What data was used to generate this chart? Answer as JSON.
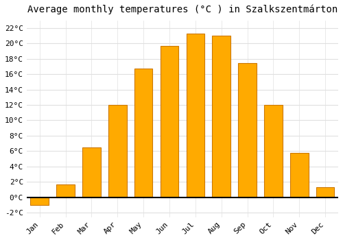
{
  "title": "Average monthly temperatures (°C ) in Szalkszentmárton",
  "months": [
    "Jan",
    "Feb",
    "Mar",
    "Apr",
    "May",
    "Jun",
    "Jul",
    "Aug",
    "Sep",
    "Oct",
    "Nov",
    "Dec"
  ],
  "temperatures": [
    -1.0,
    1.7,
    6.5,
    12.0,
    16.7,
    19.7,
    21.3,
    21.0,
    17.4,
    12.0,
    5.8,
    1.3
  ],
  "bar_color": "#FFAA00",
  "bar_edge_color": "#CC7700",
  "ylim": [
    -2.6,
    23.0
  ],
  "yticks": [
    -2,
    0,
    2,
    4,
    6,
    8,
    10,
    12,
    14,
    16,
    18,
    20,
    22
  ],
  "background_color": "#ffffff",
  "plot_bg_color": "#ffffff",
  "grid_color": "#e0e0e0",
  "title_fontsize": 10,
  "tick_fontsize": 8,
  "zero_line_color": "#000000",
  "bar_width": 0.7
}
